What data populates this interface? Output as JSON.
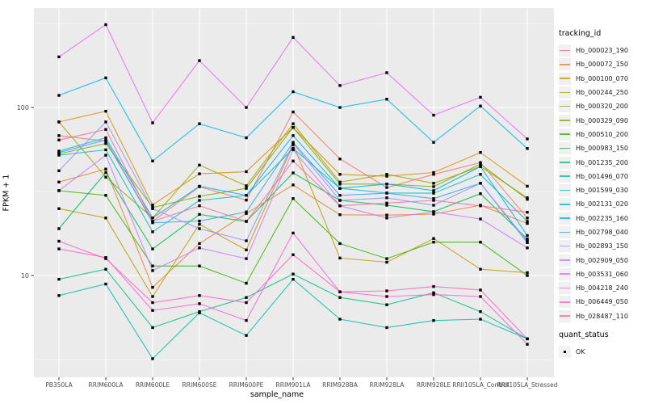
{
  "chart_data": {
    "type": "line",
    "title": "",
    "xlabel": "sample_name",
    "ylabel": "FPKM + 1",
    "y_scale": "log10",
    "yticks": [
      10,
      100
    ],
    "y_minor_gridlines": [
      3.162,
      31.62,
      316.2
    ],
    "ylim": [
      2.5,
      390
    ],
    "panel_bg": "#EBEBEB",
    "grid_color": "#FFFFFF",
    "marker": "black-square",
    "legend_title": "tracking_id",
    "quant_legend_title": "quant_status",
    "quant_status_value": "OK",
    "categories": [
      "PB350LA",
      "RRIM600LA",
      "RRIM600LE",
      "RRIM600SE",
      "RRIM600PE",
      "RRIM901LA",
      "RRIM928BA",
      "RRIM928LA",
      "RRIM928LE",
      "RRII105LA_Control",
      "RRII105LA_Stressed"
    ],
    "series": [
      {
        "name": "Hb_000023_190",
        "color": "#F8766D",
        "values": [
          68,
          63,
          21,
          33.8,
          28.1,
          94,
          49.4,
          33.4,
          40,
          47,
          22
        ]
      },
      {
        "name": "Hb_000072_150",
        "color": "#EA8331",
        "values": [
          36,
          43,
          8.5,
          15.5,
          23.4,
          34.6,
          23,
          22.9,
          23.2,
          26.2,
          20.4
        ]
      },
      {
        "name": "Hb_000100_070",
        "color": "#D89000",
        "values": [
          82,
          95,
          26.3,
          40.3,
          41.5,
          76,
          40,
          39,
          41,
          54,
          34
        ]
      },
      {
        "name": "Hb_000244_250",
        "color": "#C09B00",
        "values": [
          25,
          22,
          7.5,
          20.2,
          14.2,
          60,
          12.7,
          12,
          16.6,
          10.9,
          10.4
        ]
      },
      {
        "name": "Hb_000320_200",
        "color": "#A3A500",
        "values": [
          82,
          38.5,
          22,
          45.4,
          34.2,
          80,
          36,
          40,
          35.4,
          44.5,
          29
        ]
      },
      {
        "name": "Hb_000329_090",
        "color": "#7CAE00",
        "values": [
          53,
          61,
          25.4,
          29.6,
          33,
          76,
          35,
          35,
          33.8,
          46,
          28.4
        ]
      },
      {
        "name": "Hb_000510_200",
        "color": "#39B600",
        "values": [
          32,
          30,
          11.4,
          11.4,
          9,
          28.7,
          15.5,
          12.6,
          15.8,
          15.8,
          10
        ]
      },
      {
        "name": "Hb_000983_150",
        "color": "#00BB4E",
        "values": [
          19,
          41,
          14.4,
          23.1,
          21,
          40.8,
          28,
          26.2,
          24,
          30.7,
          16.5
        ]
      },
      {
        "name": "Hb_001235_200",
        "color": "#00C087",
        "values": [
          9.5,
          10.9,
          4.9,
          6.1,
          7.4,
          10.2,
          7.4,
          6.7,
          7.9,
          6.1,
          4.2
        ]
      },
      {
        "name": "Hb_001496_070",
        "color": "#00C1A3",
        "values": [
          7.6,
          8.9,
          3.2,
          6,
          4.4,
          9.5,
          5.5,
          4.9,
          5.4,
          5.5,
          4.2
        ]
      },
      {
        "name": "Hb_001599_030",
        "color": "#00BFC4",
        "values": [
          52,
          56,
          18.2,
          28,
          30,
          57,
          33,
          31,
          30.9,
          40,
          21
        ]
      },
      {
        "name": "Hb_002131_020",
        "color": "#00BAE0",
        "values": [
          118,
          150,
          48,
          80,
          66,
          124,
          100,
          112,
          62,
          102,
          57
        ]
      },
      {
        "name": "Hb_002235_160",
        "color": "#00B0F6",
        "values": [
          55,
          66,
          22,
          34,
          30,
          68,
          33,
          35,
          32,
          44.5,
          17.3
        ]
      },
      {
        "name": "Hb_002798_040",
        "color": "#35A2FF",
        "values": [
          54,
          64,
          20.6,
          21.1,
          23.9,
          62,
          30,
          30.9,
          28.7,
          35.4,
          15.7
        ]
      },
      {
        "name": "Hb_002893_150",
        "color": "#9590FF",
        "values": [
          42,
          82,
          25,
          19,
          16.1,
          61,
          28,
          29,
          26.2,
          35.4,
          16
        ]
      },
      {
        "name": "Hb_002909_050",
        "color": "#C77CFF",
        "values": [
          32,
          52,
          10.7,
          14.6,
          12.6,
          56,
          26,
          22,
          23.9,
          21.7,
          14.6
        ]
      },
      {
        "name": "Hb_003531_060",
        "color": "#E76BF3",
        "values": [
          200,
          311,
          81,
          190,
          100,
          261,
          135,
          161,
          90,
          115,
          65
        ]
      },
      {
        "name": "Hb_004218_240",
        "color": "#FA62DB",
        "values": [
          14.4,
          12.8,
          6.2,
          6.8,
          5.4,
          17.9,
          8,
          7.5,
          7.7,
          7.5,
          3.9
        ]
      },
      {
        "name": "Hb_006449_050",
        "color": "#FF62BC",
        "values": [
          16,
          12.6,
          6.9,
          7.6,
          6.9,
          13.3,
          8,
          8.1,
          8.6,
          8.2,
          4.2
        ]
      },
      {
        "name": "Hb_028487_110",
        "color": "#FF6A98",
        "values": [
          64,
          74,
          21,
          26,
          21,
          48,
          26,
          27,
          28,
          26,
          23.8
        ]
      }
    ]
  }
}
